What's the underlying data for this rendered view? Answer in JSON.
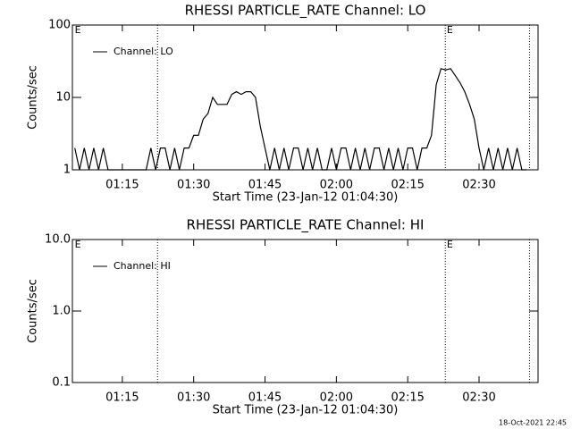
{
  "chart_data": [
    {
      "type": "line",
      "title": "RHESSI PARTICLE_RATE Channel: LO",
      "xlabel": "Start Time (23-Jan-12 01:04:30)",
      "ylabel": "Counts/sec",
      "log_y": true,
      "ylim": [
        1,
        100
      ],
      "yticks": [
        1,
        10,
        100
      ],
      "xlim": [
        64.5,
        162.4
      ],
      "xticks": [
        {
          "value": 75,
          "label": "01:15"
        },
        {
          "value": 90,
          "label": "01:30"
        },
        {
          "value": 105,
          "label": "01:45"
        },
        {
          "value": 120,
          "label": "02:00"
        },
        {
          "value": 135,
          "label": "02:15"
        },
        {
          "value": 150,
          "label": "02:30"
        }
      ],
      "vlines": [
        82.4,
        142.9,
        160.6
      ],
      "annotations": [
        {
          "x": 65,
          "text": "E"
        },
        {
          "x": 143.2,
          "text": "E"
        }
      ],
      "x": [
        65,
        66,
        67,
        68,
        69,
        70,
        71,
        72,
        73,
        74,
        75,
        76,
        77,
        78,
        79,
        80,
        81,
        82,
        83,
        84,
        85,
        86,
        87,
        88,
        89,
        90,
        91,
        92,
        93,
        94,
        95,
        96,
        97,
        98,
        99,
        100,
        101,
        102,
        103,
        104,
        105,
        106,
        107,
        108,
        109,
        110,
        111,
        112,
        113,
        114,
        115,
        116,
        117,
        118,
        119,
        120,
        121,
        122,
        123,
        124,
        125,
        126,
        127,
        128,
        129,
        130,
        131,
        132,
        133,
        134,
        135,
        136,
        137,
        138,
        139,
        140,
        141,
        142,
        143,
        144,
        145,
        146,
        147,
        148,
        149,
        150,
        151,
        152,
        153,
        154,
        155,
        156,
        157,
        158,
        159,
        160
      ],
      "series": [
        {
          "name": "Channel: LO",
          "color": "#000000",
          "values": [
            2,
            1,
            2,
            1,
            2,
            1,
            2,
            1,
            1,
            1,
            1,
            1,
            1,
            1,
            1,
            1,
            2,
            1,
            2,
            2,
            1,
            2,
            1,
            2,
            2,
            3,
            3,
            5,
            6,
            10,
            8,
            8,
            8,
            11,
            12,
            11,
            12,
            12,
            10,
            4,
            2,
            1,
            2,
            1,
            2,
            1,
            2,
            2,
            1,
            2,
            1,
            2,
            1,
            1,
            2,
            1,
            2,
            2,
            1,
            2,
            1,
            2,
            1,
            2,
            2,
            1,
            2,
            1,
            2,
            1,
            2,
            2,
            1,
            2,
            2,
            3,
            15,
            25,
            24,
            25,
            20,
            16,
            12,
            8,
            5,
            2,
            1,
            2,
            1,
            2,
            1,
            2,
            1,
            2,
            1,
            1
          ]
        }
      ]
    },
    {
      "type": "line",
      "title": "RHESSI PARTICLE_RATE Channel: HI",
      "xlabel": "Start Time (23-Jan-12 01:04:30)",
      "ylabel": "Counts/sec",
      "log_y": true,
      "ylim": [
        0.1,
        10
      ],
      "yticks": [
        {
          "value": 0.1,
          "label": "0.1"
        },
        {
          "value": 1,
          "label": "1.0"
        },
        {
          "value": 10,
          "label": "10.0"
        }
      ],
      "xlim": [
        64.5,
        162.4
      ],
      "xticks": [
        {
          "value": 75,
          "label": "01:15"
        },
        {
          "value": 90,
          "label": "01:30"
        },
        {
          "value": 105,
          "label": "01:45"
        },
        {
          "value": 120,
          "label": "02:00"
        },
        {
          "value": 135,
          "label": "02:15"
        },
        {
          "value": 150,
          "label": "02:30"
        }
      ],
      "vlines": [
        82.4,
        142.9,
        160.6
      ],
      "annotations": [
        {
          "x": 65,
          "text": "E"
        },
        {
          "x": 143.2,
          "text": "E"
        }
      ],
      "series": [
        {
          "name": "Channel: HI",
          "color": "#000000"
        }
      ]
    }
  ],
  "footer": "18-Oct-2021 22:45"
}
